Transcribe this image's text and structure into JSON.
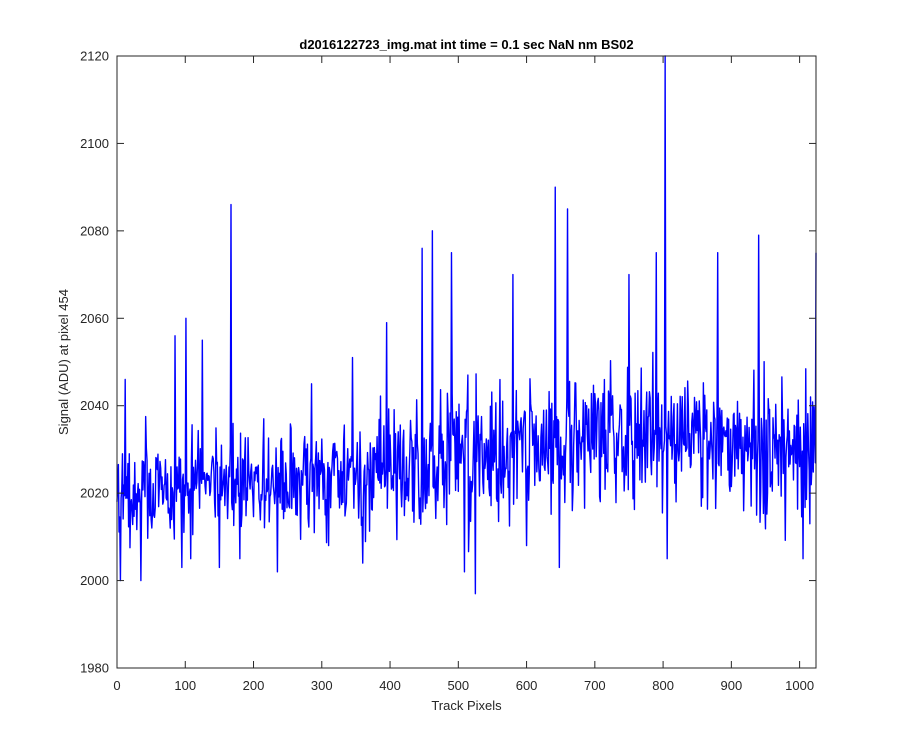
{
  "chart_data": {
    "type": "line",
    "title": "d2016122723_img.mat int time = 0.1 sec  NaN nm BS02",
    "xlabel": "Track Pixels",
    "ylabel": "Signal (ADU) at pixel 454",
    "xlim": [
      0,
      1024
    ],
    "ylim": [
      1980,
      2120
    ],
    "xticks": [
      0,
      100,
      200,
      300,
      400,
      500,
      600,
      700,
      800,
      900,
      1000
    ],
    "yticks": [
      1980,
      2000,
      2020,
      2040,
      2060,
      2080,
      2100,
      2120
    ],
    "grid": false,
    "legend": "none",
    "series": [
      {
        "color": "#0000ff",
        "sample_points": [
          {
            "x": 0,
            "y": 2018
          },
          {
            "x": 5,
            "y": 2000
          },
          {
            "x": 8,
            "y": 2029
          },
          {
            "x": 12,
            "y": 2046
          },
          {
            "x": 18,
            "y": 2029
          },
          {
            "x": 35,
            "y": 2000
          },
          {
            "x": 78,
            "y": 2012
          },
          {
            "x": 85,
            "y": 2056
          },
          {
            "x": 95,
            "y": 2003
          },
          {
            "x": 101,
            "y": 2060
          },
          {
            "x": 108,
            "y": 2005
          },
          {
            "x": 125,
            "y": 2055
          },
          {
            "x": 150,
            "y": 2003
          },
          {
            "x": 167,
            "y": 2086
          },
          {
            "x": 180,
            "y": 2005
          },
          {
            "x": 215,
            "y": 2037
          },
          {
            "x": 235,
            "y": 2002
          },
          {
            "x": 285,
            "y": 2045
          },
          {
            "x": 310,
            "y": 2008
          },
          {
            "x": 345,
            "y": 2051
          },
          {
            "x": 360,
            "y": 2004
          },
          {
            "x": 395,
            "y": 2059
          },
          {
            "x": 447,
            "y": 2076
          },
          {
            "x": 462,
            "y": 2080
          },
          {
            "x": 490,
            "y": 2075
          },
          {
            "x": 509,
            "y": 2002
          },
          {
            "x": 525,
            "y": 1997
          },
          {
            "x": 580,
            "y": 2070
          },
          {
            "x": 600,
            "y": 2008
          },
          {
            "x": 642,
            "y": 2090
          },
          {
            "x": 648,
            "y": 2003
          },
          {
            "x": 660,
            "y": 2085
          },
          {
            "x": 750,
            "y": 2070
          },
          {
            "x": 790,
            "y": 2075
          },
          {
            "x": 803,
            "y": 2120
          },
          {
            "x": 806,
            "y": 2005
          },
          {
            "x": 880,
            "y": 2075
          },
          {
            "x": 940,
            "y": 2079
          },
          {
            "x": 1005,
            "y": 2005
          },
          {
            "x": 1015,
            "y": 2013
          },
          {
            "x": 1024,
            "y": 2075
          }
        ]
      }
    ]
  }
}
